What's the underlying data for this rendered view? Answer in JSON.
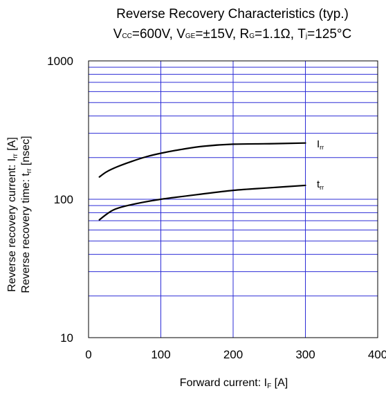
{
  "chart_data": {
    "type": "line",
    "title": "Reverse Recovery Characteristics (typ.)",
    "subtitle": {
      "vcc_main": "V",
      "vcc_sub": "CC",
      "vcc_val": "=600V, ",
      "vge_main": "V",
      "vge_sub": "GE",
      "vge_val": "=±15V, ",
      "rg_main": "R",
      "rg_sub": "G",
      "rg_val": "=1.1Ω, ",
      "tj_main": "T",
      "tj_sub": "j",
      "tj_val": "=125°C"
    },
    "xlabel": {
      "text": "Forward current: I",
      "sub": "F",
      "unit": " [A]"
    },
    "ylabel_line1": {
      "text": "Reverse recovery current: I",
      "sub": "rr",
      "unit": " [A]"
    },
    "ylabel_line2": {
      "text": "Reverse recovery time: t",
      "sub": "rr",
      "unit": " [nsec]"
    },
    "xlim": [
      0,
      400
    ],
    "ylim": [
      10,
      1000
    ],
    "yscale": "log",
    "grid": true,
    "x_ticks": [
      0,
      100,
      200,
      300,
      400
    ],
    "x_tick_labels": [
      "0",
      "100",
      "200",
      "300",
      "400"
    ],
    "y_ticks": [
      10,
      100,
      1000
    ],
    "y_tick_labels": [
      "10",
      "100",
      "1000"
    ],
    "series": [
      {
        "name": "Irr",
        "label_main": "I",
        "label_sub": "rr",
        "x": [
          15,
          25,
          40,
          60,
          80,
          100,
          130,
          160,
          200,
          250,
          300
        ],
        "y": [
          145,
          158,
          172,
          188,
          203,
          215,
          230,
          242,
          250,
          252,
          255
        ]
      },
      {
        "name": "trr",
        "label_main": "t",
        "label_sub": "rr",
        "x": [
          15,
          25,
          35,
          50,
          75,
          100,
          150,
          200,
          250,
          300
        ],
        "y": [
          71,
          78,
          84,
          89,
          95,
          100,
          108,
          116,
          121,
          126
        ]
      }
    ],
    "colors": {
      "grid": "#2b2bd6",
      "curve": "#000000",
      "frame": "#000000"
    }
  }
}
